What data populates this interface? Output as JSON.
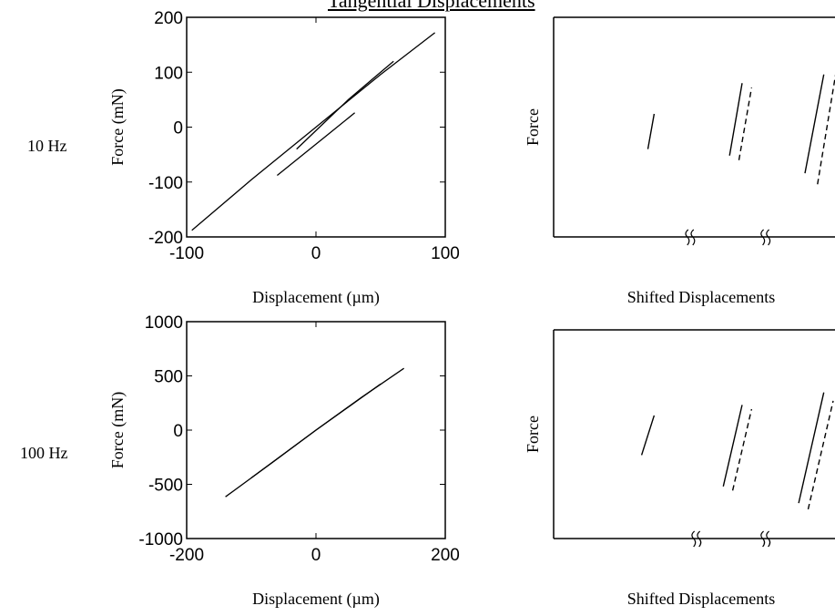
{
  "title": "Tangential Displacements",
  "row_labels": [
    "10 Hz",
    "100 Hz"
  ],
  "colors": {
    "line": "#000000",
    "background": "#ffffff"
  },
  "chart_data": [
    {
      "type": "line",
      "title": "",
      "xlabel": "Displacement (µm)",
      "ylabel": "Force (mN)",
      "xlim": [
        -100,
        100
      ],
      "ylim": [
        -200,
        200
      ],
      "xticks": [
        "-100",
        "0",
        "100"
      ],
      "yticks": [
        "200",
        "100",
        "0",
        "-100",
        "-200"
      ],
      "grid": false,
      "series": [
        {
          "x": [
            -96,
            -50,
            0,
            50,
            92
          ],
          "y": [
            -188,
            -96,
            0,
            96,
            172
          ]
        },
        {
          "x": [
            -30,
            -10,
            10,
            30
          ],
          "y": [
            -88,
            -50,
            -12,
            26
          ]
        },
        {
          "x": [
            -15,
            5,
            25,
            45,
            60
          ],
          "y": [
            -40,
            5,
            50,
            90,
            120
          ]
        }
      ]
    },
    {
      "type": "line",
      "title": "",
      "xlabel": "Shifted Displacements",
      "ylabel": "Force",
      "grid": false,
      "series": [
        {
          "name": "",
          "style": "solid",
          "x": [
            0.3,
            0.32
          ],
          "y": [
            0.4,
            0.56
          ]
        },
        {
          "name": "",
          "style": "solid",
          "x": [
            0.56,
            0.6
          ],
          "y": [
            0.37,
            0.7
          ]
        },
        {
          "name": "",
          "style": "dashed",
          "x": [
            0.59,
            0.63
          ],
          "y": [
            0.35,
            0.68
          ]
        },
        {
          "name": "",
          "style": "solid",
          "x": [
            0.8,
            0.86
          ],
          "y": [
            0.29,
            0.74
          ]
        },
        {
          "name": "",
          "style": "dashed",
          "x": [
            0.84,
            0.9
          ],
          "y": [
            0.24,
            0.76
          ]
        }
      ],
      "axis_breaks_x": [
        0.44,
        0.68
      ]
    },
    {
      "type": "line",
      "title": "",
      "xlabel": "Displacement (µm)",
      "ylabel": "Force (mN)",
      "xlim": [
        -200,
        200
      ],
      "ylim": [
        -1000,
        1000
      ],
      "xticks": [
        "-200",
        "0",
        "200"
      ],
      "yticks": [
        "1000",
        "500",
        "0",
        "-500",
        "-1000"
      ],
      "grid": false,
      "series": [
        {
          "x": [
            -140,
            -70,
            0,
            70,
            136
          ],
          "y": [
            -615,
            -310,
            0,
            300,
            570
          ]
        },
        {
          "x": [
            -100,
            0,
            100
          ],
          "y": [
            -440,
            0,
            425
          ]
        }
      ]
    },
    {
      "type": "line",
      "title": "",
      "xlabel": "Shifted Displacements",
      "ylabel": "Force",
      "grid": false,
      "series": [
        {
          "name": "",
          "style": "solid",
          "x": [
            0.28,
            0.32
          ],
          "y": [
            0.4,
            0.59
          ]
        },
        {
          "name": "",
          "style": "solid",
          "x": [
            0.54,
            0.6
          ],
          "y": [
            0.25,
            0.64
          ]
        },
        {
          "name": "",
          "style": "dashed",
          "x": [
            0.57,
            0.63
          ],
          "y": [
            0.23,
            0.62
          ]
        },
        {
          "name": "",
          "style": "solid",
          "x": [
            0.78,
            0.86
          ],
          "y": [
            0.17,
            0.7
          ]
        },
        {
          "name": "",
          "style": "dashed",
          "x": [
            0.81,
            0.89
          ],
          "y": [
            0.14,
            0.66
          ]
        }
      ],
      "axis_breaks_x": [
        0.46,
        0.68
      ]
    }
  ]
}
